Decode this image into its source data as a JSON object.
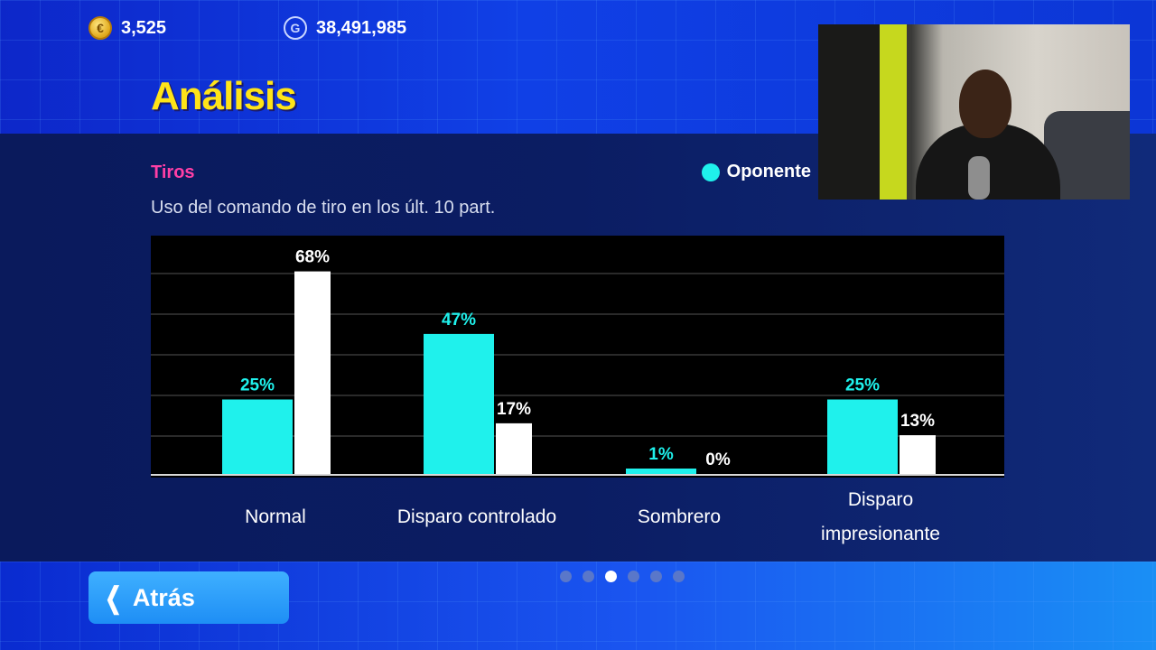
{
  "header": {
    "coins": "3,525",
    "gp": "38,491,985",
    "title": "Análisis"
  },
  "section": {
    "label": "Tiros",
    "subtitle": "Uso del comando de tiro en los últ. 10 part."
  },
  "legend": {
    "opponent_label": "Oponente",
    "opponent_color": "#1ff1ec",
    "self_color": "#ffffff"
  },
  "chart_data": {
    "type": "bar",
    "categories": [
      "Normal",
      "Disparo controlado",
      "Sombrero",
      "Disparo impresionante"
    ],
    "series": [
      {
        "name": "Oponente",
        "values": [
          25,
          47,
          1,
          25
        ],
        "labels": [
          "25%",
          "47%",
          "1%",
          "25%"
        ]
      },
      {
        "values": [
          68,
          17,
          0,
          13
        ],
        "labels": [
          "68%",
          "17%",
          "0%",
          "13%"
        ]
      }
    ],
    "ylim": [
      0,
      70
    ],
    "grid": true
  },
  "category_labels": [
    {
      "lines": [
        "Normal"
      ]
    },
    {
      "lines": [
        "Disparo controlado"
      ]
    },
    {
      "lines": [
        "Sombrero"
      ]
    },
    {
      "lines": [
        "Disparo",
        "impresionante"
      ]
    }
  ],
  "pagination": {
    "count": 6,
    "active": 2
  },
  "footer": {
    "back_label": "Atrás"
  },
  "icons": {
    "coin": "coin-icon",
    "gp": "gp-icon",
    "back": "chevron-left-icon"
  }
}
